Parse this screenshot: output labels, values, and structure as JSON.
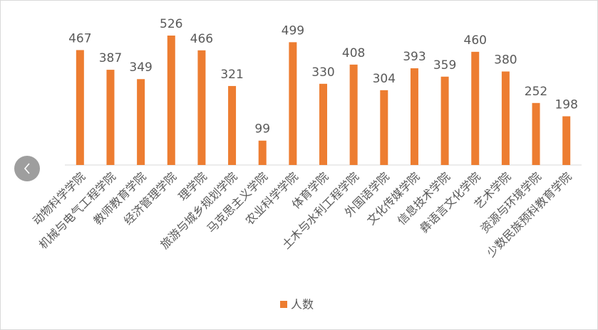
{
  "chart_data": {
    "type": "bar",
    "categories": [
      "动物科学学院",
      "机械与电气工程学院",
      "教师教育学院",
      "经济管理学院",
      "理学院",
      "旅游与城乡规划学院",
      "马克思主义学院",
      "农业科学学院",
      "体育学院",
      "土木与水利工程学院",
      "外国语学院",
      "文化传媒学院",
      "信息技术学院",
      "彝语言文化学院",
      "艺术学院",
      "资源与环境学院",
      "少数民族预科教育学院"
    ],
    "series": [
      {
        "name": "人数",
        "color": "#ed7d31",
        "values": [
          467,
          387,
          349,
          526,
          466,
          321,
          99,
          499,
          330,
          408,
          304,
          393,
          359,
          460,
          380,
          252,
          198
        ]
      }
    ],
    "ylim": [
      0,
      600
    ],
    "legend": "bottom"
  }
}
